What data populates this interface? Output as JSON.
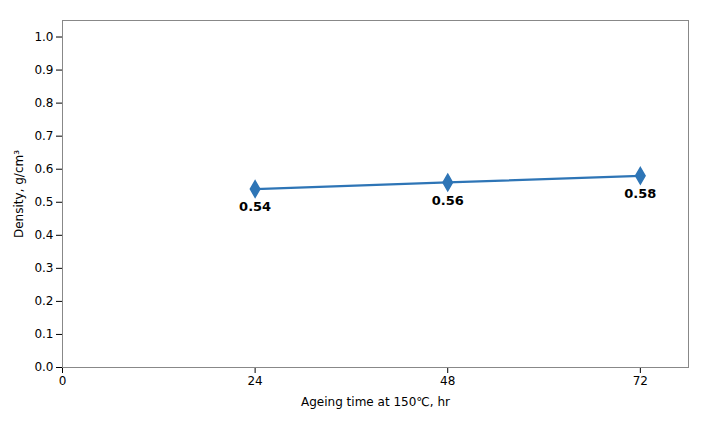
{
  "chart_data": {
    "type": "line",
    "x": [
      24,
      48,
      72
    ],
    "values": [
      0.54,
      0.56,
      0.58
    ],
    "xlabel": "Ageing time at 150℃, hr",
    "ylabel": "Density, g/cm³",
    "xlim": [
      0,
      78
    ],
    "ylim": [
      0.0,
      1.05
    ],
    "xticks": [
      0,
      24,
      48,
      72
    ],
    "yticks": [
      {
        "value": 0,
        "label": "0.0"
      },
      0.1,
      0.2,
      0.3,
      0.4,
      0.5,
      0.6,
      0.7,
      0.8,
      0.9,
      {
        "value": 1,
        "label": "1.0"
      }
    ],
    "color": "#2E75B6",
    "marker": "diamond",
    "data_labels": true,
    "grid": false
  }
}
